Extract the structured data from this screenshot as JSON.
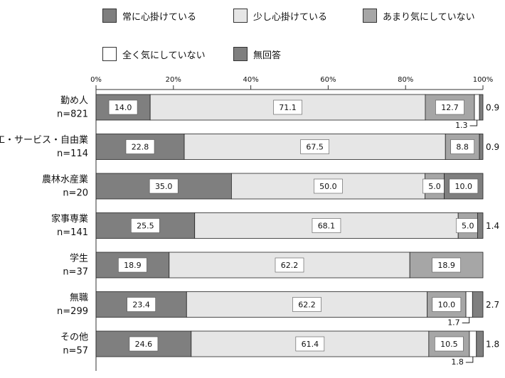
{
  "chart_data": {
    "type": "bar",
    "orientation": "horizontal-stacked-100",
    "x_ticks": [
      "0%",
      "20%",
      "40%",
      "60%",
      "80%",
      "100%"
    ],
    "xlim": [
      0,
      100
    ],
    "legend": [
      {
        "name": "常に心掛けている",
        "color": "#7f7f7f"
      },
      {
        "name": "少し心掛けている",
        "color": "#e6e6e6"
      },
      {
        "name": "あまり気にしていない",
        "color": "#a6a6a6"
      },
      {
        "name": "全く気にしていない",
        "color": "#ffffff"
      },
      {
        "name": "無回答",
        "color": "#7f7f7f"
      }
    ],
    "categories": [
      {
        "name": "勤め人",
        "n": "n=821"
      },
      {
        "name": "商工・サービス・自由業",
        "n": "n=114"
      },
      {
        "name": "農林水産業",
        "n": "n=20"
      },
      {
        "name": "家事専業",
        "n": "n=141"
      },
      {
        "name": "学生",
        "n": "n=37"
      },
      {
        "name": "無職",
        "n": "n=299"
      },
      {
        "name": "その他",
        "n": "n=57"
      }
    ],
    "series": [
      {
        "name": "常に心掛けている",
        "values": [
          14.0,
          22.8,
          35.0,
          25.5,
          18.9,
          23.4,
          24.6
        ]
      },
      {
        "name": "少し心掛けている",
        "values": [
          71.1,
          67.5,
          50.0,
          68.1,
          62.2,
          62.2,
          61.4
        ]
      },
      {
        "name": "あまり気にしていない",
        "values": [
          12.7,
          8.8,
          5.0,
          5.0,
          18.9,
          10.0,
          10.5
        ]
      },
      {
        "name": "全く気にしていない",
        "values": [
          1.3,
          0.0,
          0.0,
          0.0,
          0.0,
          1.7,
          1.8
        ]
      },
      {
        "name": "無回答",
        "values": [
          0.9,
          0.9,
          10.0,
          1.4,
          0.0,
          2.7,
          1.8
        ]
      }
    ],
    "bar_labels": [
      [
        "14.0",
        "71.1",
        "12.7",
        "",
        ""
      ],
      [
        "22.8",
        "67.5",
        "8.8",
        "",
        ""
      ],
      [
        "35.0",
        "50.0",
        "5.0",
        "",
        "10.0"
      ],
      [
        "25.5",
        "68.1",
        "5.0",
        "",
        ""
      ],
      [
        "18.9",
        "62.2",
        "18.9",
        "",
        ""
      ],
      [
        "23.4",
        "62.2",
        "10.0",
        "",
        ""
      ],
      [
        "24.6",
        "61.4",
        "10.5",
        "",
        ""
      ]
    ],
    "right_labels": [
      "0.9",
      "0.9",
      "",
      "1.4",
      "",
      "2.7",
      "1.8"
    ],
    "below_labels": [
      "1.3",
      "",
      "",
      "",
      "",
      "1.7",
      "1.8"
    ]
  }
}
